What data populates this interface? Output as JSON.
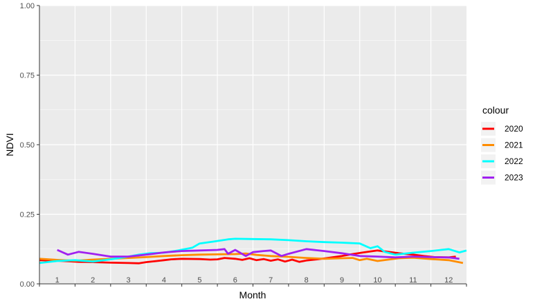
{
  "chart_data": {
    "type": "line",
    "title": "",
    "xlabel": "Month",
    "ylabel": "NDVI",
    "xlim": [
      0.5,
      12.5
    ],
    "ylim": [
      0,
      1
    ],
    "y_ticks": [
      "0.00",
      "0.25",
      "0.50",
      "0.75",
      "1.00"
    ],
    "x_ticks": [
      "1",
      "2",
      "3",
      "4",
      "5",
      "6",
      "7",
      "8",
      "9",
      "10",
      "11",
      "12"
    ],
    "grid": true,
    "background": "#ebebeb",
    "legend": {
      "title": "colour",
      "position": "right"
    },
    "series": [
      {
        "name": "2020",
        "color": "#ff0000",
        "x": [
          0.5,
          1.0,
          1.3,
          1.6,
          2.0,
          2.5,
          3.0,
          3.3,
          3.5,
          3.8,
          4.0,
          4.2,
          4.5,
          5.0,
          5.3,
          5.5,
          5.7,
          6.0,
          6.2,
          6.4,
          6.6,
          6.8,
          7.0,
          7.2,
          7.4,
          7.6,
          7.8,
          8.0,
          8.3,
          8.6,
          9.0,
          9.3,
          9.6,
          10.0,
          10.3,
          10.6,
          11.0,
          11.3,
          11.6,
          12.0,
          12.2
        ],
        "values": [
          0.085,
          0.083,
          0.081,
          0.079,
          0.078,
          0.076,
          0.075,
          0.074,
          0.078,
          0.082,
          0.085,
          0.088,
          0.09,
          0.089,
          0.087,
          0.088,
          0.093,
          0.09,
          0.086,
          0.092,
          0.085,
          0.089,
          0.083,
          0.088,
          0.08,
          0.087,
          0.079,
          0.084,
          0.088,
          0.093,
          0.1,
          0.107,
          0.113,
          0.12,
          0.115,
          0.11,
          0.105,
          0.1,
          0.096,
          0.095,
          0.098
        ]
      },
      {
        "name": "2021",
        "color": "#ff8c00",
        "x": [
          0.5,
          1.0,
          1.5,
          2.0,
          2.5,
          3.0,
          3.5,
          4.0,
          4.5,
          5.0,
          5.5,
          6.0,
          6.3,
          6.6,
          7.0,
          7.5,
          8.0,
          8.5,
          9.0,
          9.3,
          9.5,
          9.7,
          10.0,
          10.3,
          10.6,
          11.0,
          11.5,
          12.0,
          12.4
        ],
        "values": [
          0.09,
          0.086,
          0.083,
          0.087,
          0.09,
          0.093,
          0.096,
          0.1,
          0.103,
          0.105,
          0.106,
          0.107,
          0.109,
          0.104,
          0.1,
          0.097,
          0.093,
          0.09,
          0.092,
          0.093,
          0.085,
          0.09,
          0.082,
          0.087,
          0.092,
          0.094,
          0.089,
          0.085,
          0.075
        ]
      },
      {
        "name": "2022",
        "color": "#00ffff",
        "x": [
          0.5,
          1.0,
          1.5,
          2.0,
          2.5,
          3.0,
          3.3,
          3.6,
          4.0,
          4.4,
          4.6,
          4.8,
          5.0,
          5.4,
          5.8,
          6.0,
          6.5,
          7.0,
          7.5,
          8.0,
          8.5,
          9.0,
          9.5,
          9.8,
          10.0,
          10.2,
          10.5,
          11.0,
          11.5,
          12.0,
          12.3,
          12.5
        ],
        "values": [
          0.075,
          0.082,
          0.085,
          0.08,
          0.088,
          0.098,
          0.105,
          0.11,
          0.112,
          0.12,
          0.125,
          0.13,
          0.145,
          0.152,
          0.16,
          0.162,
          0.161,
          0.16,
          0.157,
          0.153,
          0.15,
          0.148,
          0.145,
          0.128,
          0.135,
          0.115,
          0.105,
          0.112,
          0.118,
          0.125,
          0.113,
          0.12
        ]
      },
      {
        "name": "2023",
        "color": "#a020f0",
        "x": [
          1.0,
          1.3,
          1.6,
          2.0,
          2.5,
          3.0,
          3.5,
          4.0,
          4.5,
          5.0,
          5.5,
          5.7,
          5.8,
          6.0,
          6.3,
          6.5,
          6.8,
          7.0,
          7.3,
          7.5,
          8.0,
          8.5,
          9.0,
          9.5,
          10.0,
          10.5,
          11.0,
          11.5,
          12.0,
          12.3
        ],
        "values": [
          0.122,
          0.105,
          0.115,
          0.108,
          0.098,
          0.098,
          0.105,
          0.113,
          0.118,
          0.12,
          0.122,
          0.125,
          0.108,
          0.122,
          0.1,
          0.114,
          0.118,
          0.12,
          0.1,
          0.108,
          0.125,
          0.118,
          0.11,
          0.1,
          0.098,
          0.095,
          0.098,
          0.096,
          0.095,
          0.09
        ]
      }
    ]
  }
}
